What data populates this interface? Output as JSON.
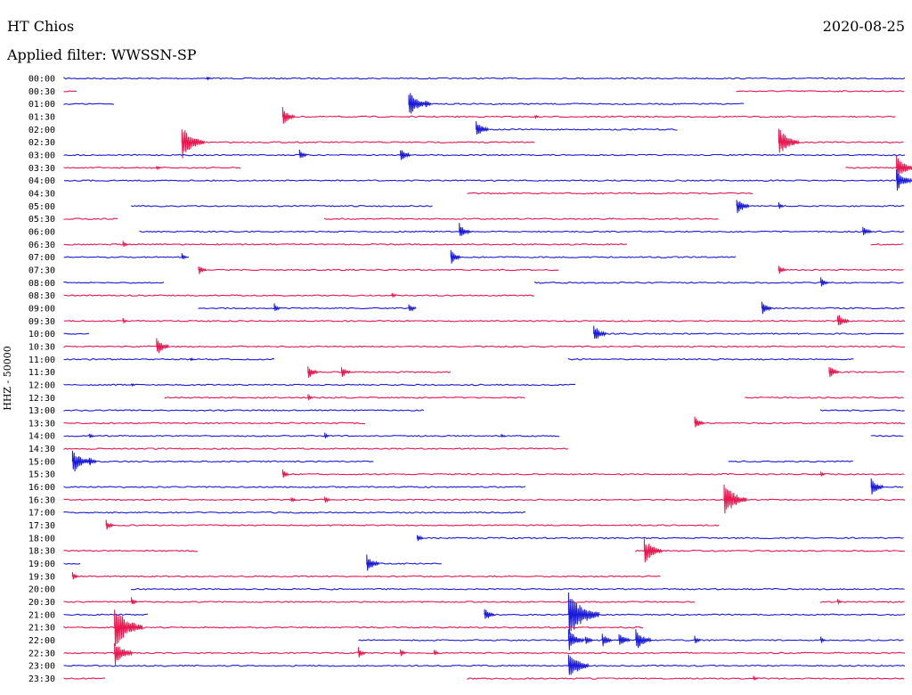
{
  "header": {
    "station": "HT Chios",
    "date": "2020-08-25",
    "filter": "Applied filter: WWSSN-SP"
  },
  "colors": {
    "blue": "#1a1adb",
    "red": "#e8174f"
  },
  "chart_data": {
    "type": "line",
    "ylabel": "HHZ - 50000",
    "rows": [
      {
        "t": "00:00",
        "c": "blue",
        "seg": [
          [
            0,
            1
          ]
        ],
        "ev": [
          [
            0.17,
            2
          ]
        ]
      },
      {
        "t": "00:30",
        "c": "red",
        "seg": [
          [
            0,
            0.016
          ],
          [
            0.8,
            1
          ]
        ],
        "ev": []
      },
      {
        "t": "01:00",
        "c": "blue",
        "seg": [
          [
            0,
            0.06
          ],
          [
            0.41,
            0.81
          ]
        ],
        "ev": [
          [
            0.41,
            14
          ],
          [
            0.43,
            5
          ]
        ]
      },
      {
        "t": "01:30",
        "c": "red",
        "seg": [
          [
            0.26,
            0.99
          ]
        ],
        "ev": [
          [
            0.26,
            10
          ],
          [
            0.56,
            2
          ]
        ]
      },
      {
        "t": "02:00",
        "c": "blue",
        "seg": [
          [
            0.49,
            0.73
          ]
        ],
        "ev": [
          [
            0.49,
            10
          ]
        ]
      },
      {
        "t": "02:30",
        "c": "red",
        "seg": [
          [
            0.14,
            0.56
          ],
          [
            0.85,
            1
          ]
        ],
        "ev": [
          [
            0.14,
            18
          ],
          [
            0.85,
            16
          ]
        ]
      },
      {
        "t": "03:00",
        "c": "blue",
        "seg": [
          [
            0,
            1
          ]
        ],
        "ev": [
          [
            0.28,
            6
          ],
          [
            0.4,
            8
          ]
        ]
      },
      {
        "t": "03:30",
        "c": "red",
        "seg": [
          [
            0,
            0.21
          ],
          [
            0.93,
            1
          ]
        ],
        "ev": [
          [
            0.11,
            3
          ],
          [
            0.99,
            14
          ]
        ]
      },
      {
        "t": "04:00",
        "c": "blue",
        "seg": [
          [
            0,
            0.99
          ]
        ],
        "ev": [
          [
            0.99,
            12
          ]
        ]
      },
      {
        "t": "04:30",
        "c": "red",
        "seg": [
          [
            0.48,
            0.82
          ]
        ],
        "ev": []
      },
      {
        "t": "05:00",
        "c": "blue",
        "seg": [
          [
            0.08,
            0.44
          ],
          [
            0.8,
            1
          ]
        ],
        "ev": [
          [
            0.8,
            10
          ],
          [
            0.85,
            4
          ]
        ]
      },
      {
        "t": "05:30",
        "c": "red",
        "seg": [
          [
            0,
            0.065
          ],
          [
            0.31,
            0.78
          ]
        ],
        "ev": []
      },
      {
        "t": "06:00",
        "c": "blue",
        "seg": [
          [
            0.09,
            1
          ]
        ],
        "ev": [
          [
            0.47,
            9
          ],
          [
            0.95,
            7
          ]
        ]
      },
      {
        "t": "06:30",
        "c": "red",
        "seg": [
          [
            0,
            0.67
          ],
          [
            0.96,
            1
          ]
        ],
        "ev": [
          [
            0.07,
            4
          ]
        ]
      },
      {
        "t": "07:00",
        "c": "blue",
        "seg": [
          [
            0,
            0.15
          ],
          [
            0.46,
            0.8
          ]
        ],
        "ev": [
          [
            0.14,
            4
          ],
          [
            0.46,
            8
          ]
        ]
      },
      {
        "t": "07:30",
        "c": "red",
        "seg": [
          [
            0.16,
            0.59
          ],
          [
            0.85,
            1
          ]
        ],
        "ev": [
          [
            0.16,
            6
          ],
          [
            0.85,
            6
          ]
        ]
      },
      {
        "t": "08:00",
        "c": "blue",
        "seg": [
          [
            0,
            0.12
          ],
          [
            0.56,
            1
          ]
        ],
        "ev": [
          [
            0.9,
            6
          ]
        ]
      },
      {
        "t": "08:30",
        "c": "red",
        "seg": [
          [
            0,
            0.56
          ]
        ],
        "ev": [
          [
            0.39,
            3
          ]
        ]
      },
      {
        "t": "09:00",
        "c": "blue",
        "seg": [
          [
            0.16,
            0.41
          ],
          [
            0.83,
            1
          ]
        ],
        "ev": [
          [
            0.25,
            5
          ],
          [
            0.41,
            6
          ],
          [
            0.83,
            8
          ]
        ]
      },
      {
        "t": "09:30",
        "c": "red",
        "seg": [
          [
            0,
            1
          ]
        ],
        "ev": [
          [
            0.07,
            3
          ],
          [
            0.92,
            9
          ]
        ]
      },
      {
        "t": "10:00",
        "c": "blue",
        "seg": [
          [
            0,
            0.03
          ],
          [
            0.63,
            1
          ]
        ],
        "ev": [
          [
            0.63,
            10
          ]
        ]
      },
      {
        "t": "10:30",
        "c": "red",
        "seg": [
          [
            0,
            1
          ]
        ],
        "ev": [
          [
            0.11,
            10
          ]
        ]
      },
      {
        "t": "11:00",
        "c": "blue",
        "seg": [
          [
            0,
            0.25
          ],
          [
            0.6,
            0.94
          ]
        ],
        "ev": [
          [
            0.15,
            2
          ]
        ]
      },
      {
        "t": "11:30",
        "c": "red",
        "seg": [
          [
            0.29,
            0.46
          ],
          [
            0.91,
            1
          ]
        ],
        "ev": [
          [
            0.29,
            8
          ],
          [
            0.33,
            7
          ],
          [
            0.91,
            8
          ]
        ]
      },
      {
        "t": "12:00",
        "c": "blue",
        "seg": [
          [
            0,
            0.61
          ]
        ],
        "ev": [
          [
            0.08,
            2
          ]
        ]
      },
      {
        "t": "12:30",
        "c": "red",
        "seg": [
          [
            0.12,
            0.55
          ],
          [
            0.81,
            1
          ]
        ],
        "ev": [
          [
            0.29,
            4
          ]
        ]
      },
      {
        "t": "13:00",
        "c": "blue",
        "seg": [
          [
            0,
            0.43
          ],
          [
            0.9,
            1
          ]
        ],
        "ev": []
      },
      {
        "t": "13:30",
        "c": "red",
        "seg": [
          [
            0,
            0.36
          ],
          [
            0.75,
            1
          ]
        ],
        "ev": [
          [
            0.75,
            8
          ]
        ]
      },
      {
        "t": "14:00",
        "c": "blue",
        "seg": [
          [
            0,
            0.59
          ],
          [
            0.96,
            1
          ]
        ],
        "ev": [
          [
            0.03,
            3
          ],
          [
            0.31,
            4
          ],
          [
            0.52,
            2
          ]
        ]
      },
      {
        "t": "14:30",
        "c": "red",
        "seg": [
          [
            0,
            0.6
          ]
        ],
        "ev": []
      },
      {
        "t": "15:00",
        "c": "blue",
        "seg": [
          [
            0.01,
            0.37
          ],
          [
            0.79,
            0.94
          ]
        ],
        "ev": [
          [
            0.01,
            14
          ],
          [
            0.03,
            6
          ]
        ]
      },
      {
        "t": "15:30",
        "c": "red",
        "seg": [
          [
            0.26,
            1
          ]
        ],
        "ev": [
          [
            0.26,
            5
          ],
          [
            0.9,
            3
          ]
        ]
      },
      {
        "t": "16:00",
        "c": "blue",
        "seg": [
          [
            0,
            0.55
          ],
          [
            0.96,
            1
          ]
        ],
        "ev": [
          [
            0.96,
            10
          ]
        ]
      },
      {
        "t": "16:30",
        "c": "red",
        "seg": [
          [
            0,
            1
          ]
        ],
        "ev": [
          [
            0.27,
            4
          ],
          [
            0.31,
            5
          ],
          [
            0.785,
            18
          ]
        ]
      },
      {
        "t": "17:00",
        "c": "blue",
        "seg": [
          [
            0,
            0.55
          ]
        ],
        "ev": []
      },
      {
        "t": "17:30",
        "c": "red",
        "seg": [
          [
            0.05,
            0.78
          ]
        ],
        "ev": [
          [
            0.05,
            6
          ]
        ]
      },
      {
        "t": "18:00",
        "c": "blue",
        "seg": [
          [
            0.42,
            1
          ]
        ],
        "ev": [
          [
            0.42,
            5
          ]
        ]
      },
      {
        "t": "18:30",
        "c": "red",
        "seg": [
          [
            0,
            0.16
          ],
          [
            0.68,
            1
          ]
        ],
        "ev": [
          [
            0.69,
            14
          ]
        ]
      },
      {
        "t": "19:00",
        "c": "blue",
        "seg": [
          [
            0,
            0.02
          ],
          [
            0.36,
            0.45
          ]
        ],
        "ev": [
          [
            0.36,
            10
          ]
        ]
      },
      {
        "t": "19:30",
        "c": "red",
        "seg": [
          [
            0.01,
            0.71
          ]
        ],
        "ev": [
          [
            0.01,
            5
          ]
        ]
      },
      {
        "t": "20:00",
        "c": "blue",
        "seg": [
          [
            0.08,
            1
          ]
        ],
        "ev": []
      },
      {
        "t": "20:30",
        "c": "red",
        "seg": [
          [
            0,
            0.75
          ],
          [
            0.9,
            1
          ]
        ],
        "ev": [
          [
            0.08,
            5
          ],
          [
            0.92,
            3
          ]
        ]
      },
      {
        "t": "21:00",
        "c": "blue",
        "seg": [
          [
            0,
            0.1
          ],
          [
            0.5,
            1
          ]
        ],
        "ev": [
          [
            0.5,
            8
          ],
          [
            0.6,
            24
          ]
        ]
      },
      {
        "t": "21:30",
        "c": "red",
        "seg": [
          [
            0,
            0.69
          ]
        ],
        "ev": [
          [
            0.06,
            22
          ]
        ]
      },
      {
        "t": "22:00",
        "c": "blue",
        "seg": [
          [
            0.35,
            1
          ]
        ],
        "ev": [
          [
            0.6,
            12
          ],
          [
            0.62,
            6
          ],
          [
            0.64,
            8
          ],
          [
            0.66,
            9
          ],
          [
            0.68,
            12
          ],
          [
            0.75,
            5
          ],
          [
            0.9,
            4
          ]
        ]
      },
      {
        "t": "22:30",
        "c": "red",
        "seg": [
          [
            0,
            1
          ]
        ],
        "ev": [
          [
            0.06,
            14
          ],
          [
            0.35,
            6
          ],
          [
            0.4,
            5
          ],
          [
            0.44,
            4
          ]
        ]
      },
      {
        "t": "23:00",
        "c": "blue",
        "seg": [
          [
            0,
            1
          ]
        ],
        "ev": [
          [
            0.6,
            16
          ]
        ]
      },
      {
        "t": "23:30",
        "c": "red",
        "seg": [
          [
            0,
            0.05
          ],
          [
            0.48,
            1
          ]
        ],
        "ev": [
          [
            0.82,
            3
          ]
        ]
      }
    ]
  }
}
